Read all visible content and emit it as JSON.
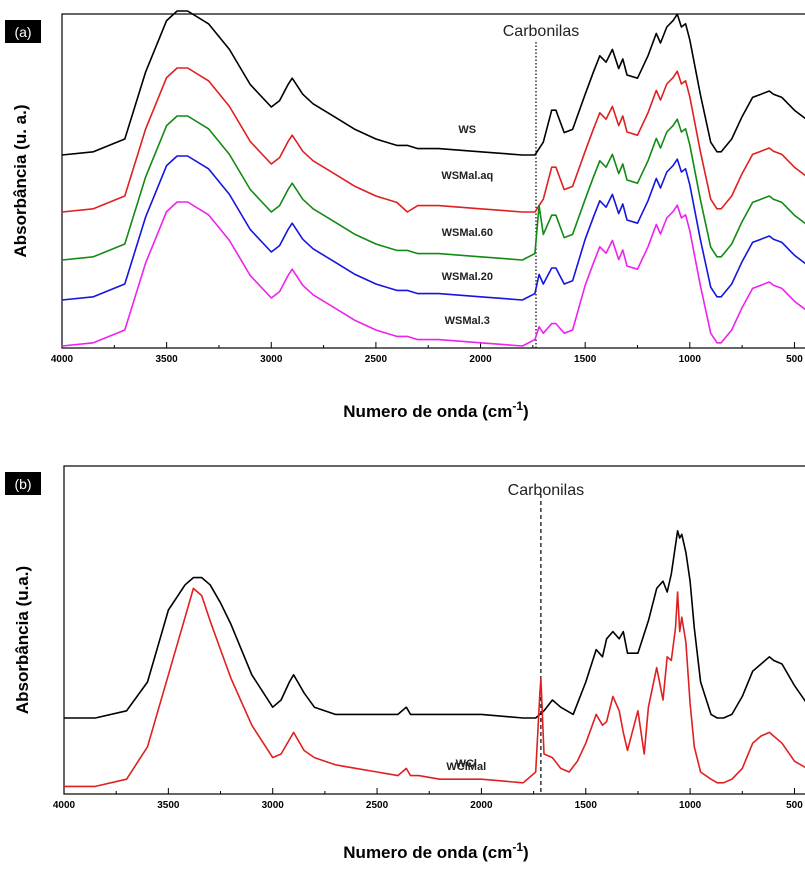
{
  "chart_data": [
    {
      "type": "line",
      "panel_label": "(a)",
      "xlabel": "Numero de onda (cm",
      "xlabel_sup": "-1",
      "xlabel_suffix": ")",
      "ylabel": "Absorbância (u. a.)",
      "xlim": [
        4000,
        440
      ],
      "x_reversed": true,
      "x_ticks": [
        4000,
        3500,
        3000,
        2500,
        2000,
        1500,
        1000,
        500
      ],
      "x_tick_labels": [
        "4000",
        "3500",
        "3000",
        "2500",
        "2000",
        "1500",
        "1000",
        "500"
      ],
      "y_ticks_shown": false,
      "grid": false,
      "annotation": {
        "text": "Carbonilas",
        "x": 1735,
        "line_style": "dotted"
      },
      "series": [
        {
          "name": "WS",
          "color": "#000000",
          "x": [
            4000,
            3850,
            3700,
            3600,
            3500,
            3450,
            3400,
            3300,
            3200,
            3100,
            3000,
            2960,
            2920,
            2900,
            2880,
            2850,
            2800,
            2700,
            2600,
            2500,
            2400,
            2350,
            2300,
            2200,
            2000,
            1800,
            1740,
            1700,
            1660,
            1640,
            1600,
            1560,
            1500,
            1460,
            1430,
            1400,
            1370,
            1340,
            1320,
            1300,
            1250,
            1200,
            1160,
            1140,
            1110,
            1080,
            1060,
            1040,
            1020,
            1000,
            950,
            900,
            870,
            850,
            800,
            750,
            700,
            660,
            620,
            600,
            560,
            500,
            440
          ],
          "y": [
            0.0,
            0.01,
            0.05,
            0.26,
            0.42,
            0.45,
            0.45,
            0.41,
            0.33,
            0.22,
            0.15,
            0.17,
            0.22,
            0.24,
            0.22,
            0.19,
            0.16,
            0.12,
            0.08,
            0.05,
            0.03,
            0.03,
            0.02,
            0.02,
            0.01,
            0.0,
            0.0,
            0.04,
            0.14,
            0.14,
            0.07,
            0.08,
            0.19,
            0.26,
            0.31,
            0.29,
            0.33,
            0.27,
            0.3,
            0.25,
            0.24,
            0.31,
            0.38,
            0.35,
            0.4,
            0.42,
            0.44,
            0.4,
            0.41,
            0.36,
            0.19,
            0.04,
            0.01,
            0.01,
            0.05,
            0.12,
            0.18,
            0.19,
            0.2,
            0.19,
            0.18,
            0.14,
            0.11
          ]
        },
        {
          "name": "WSMal.aq",
          "color": "#e02020",
          "x": [
            4000,
            3850,
            3700,
            3600,
            3500,
            3450,
            3400,
            3300,
            3200,
            3100,
            3000,
            2960,
            2920,
            2900,
            2880,
            2850,
            2800,
            2700,
            2600,
            2500,
            2400,
            2350,
            2300,
            2200,
            2000,
            1800,
            1740,
            1700,
            1660,
            1640,
            1600,
            1560,
            1500,
            1460,
            1430,
            1400,
            1370,
            1340,
            1320,
            1300,
            1250,
            1200,
            1160,
            1140,
            1110,
            1080,
            1060,
            1040,
            1020,
            1000,
            950,
            900,
            870,
            850,
            800,
            750,
            700,
            660,
            620,
            600,
            560,
            500,
            440
          ],
          "y": [
            0.0,
            0.01,
            0.05,
            0.26,
            0.42,
            0.45,
            0.45,
            0.41,
            0.33,
            0.22,
            0.15,
            0.17,
            0.22,
            0.24,
            0.22,
            0.19,
            0.16,
            0.12,
            0.08,
            0.05,
            0.03,
            0.0,
            0.02,
            0.02,
            0.01,
            0.0,
            0.0,
            0.04,
            0.14,
            0.14,
            0.07,
            0.08,
            0.19,
            0.26,
            0.31,
            0.29,
            0.33,
            0.27,
            0.3,
            0.25,
            0.24,
            0.31,
            0.38,
            0.35,
            0.4,
            0.42,
            0.44,
            0.4,
            0.41,
            0.36,
            0.19,
            0.04,
            0.01,
            0.01,
            0.05,
            0.12,
            0.18,
            0.19,
            0.2,
            0.19,
            0.18,
            0.14,
            0.11
          ]
        },
        {
          "name": "WSMal.60",
          "color": "#138a13",
          "x": [
            4000,
            3850,
            3700,
            3600,
            3500,
            3450,
            3400,
            3300,
            3200,
            3100,
            3000,
            2960,
            2920,
            2900,
            2880,
            2850,
            2800,
            2700,
            2600,
            2500,
            2400,
            2350,
            2300,
            2200,
            2000,
            1800,
            1740,
            1720,
            1700,
            1660,
            1640,
            1600,
            1560,
            1500,
            1460,
            1430,
            1400,
            1370,
            1340,
            1320,
            1300,
            1250,
            1200,
            1160,
            1140,
            1110,
            1080,
            1060,
            1040,
            1020,
            1000,
            950,
            900,
            870,
            850,
            800,
            750,
            700,
            660,
            620,
            600,
            560,
            500,
            440
          ],
          "y": [
            0.0,
            0.01,
            0.05,
            0.26,
            0.42,
            0.45,
            0.45,
            0.41,
            0.33,
            0.22,
            0.15,
            0.17,
            0.22,
            0.24,
            0.22,
            0.19,
            0.16,
            0.12,
            0.08,
            0.05,
            0.03,
            0.03,
            0.02,
            0.02,
            0.01,
            0.0,
            0.02,
            0.17,
            0.08,
            0.14,
            0.14,
            0.07,
            0.08,
            0.19,
            0.26,
            0.31,
            0.29,
            0.33,
            0.27,
            0.3,
            0.25,
            0.24,
            0.31,
            0.38,
            0.35,
            0.4,
            0.42,
            0.44,
            0.4,
            0.41,
            0.36,
            0.19,
            0.04,
            0.01,
            0.01,
            0.05,
            0.12,
            0.18,
            0.19,
            0.2,
            0.19,
            0.18,
            0.14,
            0.11
          ]
        },
        {
          "name": "WSMal.20",
          "color": "#1515e0",
          "x": [
            4000,
            3850,
            3700,
            3600,
            3500,
            3450,
            3400,
            3300,
            3200,
            3100,
            3000,
            2960,
            2920,
            2900,
            2880,
            2850,
            2800,
            2700,
            2600,
            2500,
            2400,
            2350,
            2300,
            2200,
            2000,
            1800,
            1740,
            1720,
            1700,
            1660,
            1640,
            1600,
            1560,
            1500,
            1460,
            1430,
            1400,
            1370,
            1340,
            1320,
            1300,
            1250,
            1200,
            1160,
            1140,
            1110,
            1080,
            1060,
            1040,
            1020,
            1000,
            950,
            900,
            870,
            850,
            800,
            750,
            700,
            660,
            620,
            600,
            560,
            500,
            440
          ],
          "y": [
            0.0,
            0.01,
            0.05,
            0.26,
            0.42,
            0.45,
            0.45,
            0.41,
            0.33,
            0.22,
            0.15,
            0.17,
            0.22,
            0.24,
            0.22,
            0.19,
            0.16,
            0.12,
            0.08,
            0.05,
            0.03,
            0.03,
            0.02,
            0.02,
            0.01,
            0.0,
            0.02,
            0.08,
            0.05,
            0.1,
            0.1,
            0.05,
            0.06,
            0.19,
            0.26,
            0.31,
            0.29,
            0.33,
            0.27,
            0.3,
            0.25,
            0.24,
            0.31,
            0.38,
            0.35,
            0.4,
            0.42,
            0.44,
            0.4,
            0.41,
            0.36,
            0.19,
            0.04,
            0.01,
            0.01,
            0.05,
            0.12,
            0.18,
            0.19,
            0.2,
            0.19,
            0.18,
            0.14,
            0.11
          ]
        },
        {
          "name": "WSMal.3",
          "color": "#ee22ee",
          "x": [
            4000,
            3850,
            3700,
            3600,
            3500,
            3450,
            3400,
            3300,
            3200,
            3100,
            3000,
            2960,
            2920,
            2900,
            2880,
            2850,
            2800,
            2700,
            2600,
            2500,
            2400,
            2350,
            2300,
            2200,
            2000,
            1800,
            1740,
            1720,
            1700,
            1660,
            1640,
            1600,
            1560,
            1500,
            1460,
            1430,
            1400,
            1370,
            1340,
            1320,
            1300,
            1250,
            1200,
            1160,
            1140,
            1110,
            1080,
            1060,
            1040,
            1020,
            1000,
            950,
            900,
            870,
            850,
            800,
            750,
            700,
            660,
            620,
            600,
            560,
            500,
            440
          ],
          "y": [
            0.0,
            0.01,
            0.05,
            0.26,
            0.42,
            0.45,
            0.45,
            0.41,
            0.33,
            0.22,
            0.15,
            0.17,
            0.22,
            0.24,
            0.22,
            0.19,
            0.16,
            0.12,
            0.08,
            0.05,
            0.03,
            0.03,
            0.02,
            0.02,
            0.01,
            0.0,
            0.02,
            0.06,
            0.04,
            0.07,
            0.07,
            0.04,
            0.05,
            0.19,
            0.26,
            0.31,
            0.29,
            0.33,
            0.27,
            0.3,
            0.25,
            0.24,
            0.31,
            0.38,
            0.35,
            0.4,
            0.42,
            0.44,
            0.4,
            0.41,
            0.36,
            0.19,
            0.04,
            0.01,
            0.01,
            0.05,
            0.12,
            0.18,
            0.19,
            0.2,
            0.19,
            0.18,
            0.14,
            0.11
          ]
        }
      ],
      "series_label_x": [
        2350,
        2350,
        2350,
        2350,
        2350
      ]
    },
    {
      "type": "line",
      "panel_label": "(b)",
      "xlabel": "Numero de onda (cm",
      "xlabel_sup": "-1",
      "xlabel_suffix": ")",
      "ylabel": "Absorbância (u.a.)",
      "xlim": [
        4000,
        440
      ],
      "x_reversed": true,
      "x_ticks": [
        4000,
        3500,
        3000,
        2500,
        2000,
        1500,
        1000,
        500
      ],
      "x_tick_labels": [
        "4000",
        "3500",
        "3000",
        "2500",
        "2000",
        "1500",
        "1000",
        "500"
      ],
      "y_ticks_shown": false,
      "grid": false,
      "annotation": {
        "text": "Carbonilas",
        "x": 1715,
        "line_style": "dashed"
      },
      "series": [
        {
          "name": "WCl",
          "color": "#000000",
          "x": [
            4000,
            3850,
            3700,
            3600,
            3500,
            3420,
            3380,
            3340,
            3300,
            3250,
            3200,
            3100,
            3000,
            2960,
            2920,
            2900,
            2880,
            2850,
            2800,
            2700,
            2600,
            2500,
            2400,
            2360,
            2340,
            2300,
            2200,
            2000,
            1800,
            1740,
            1700,
            1660,
            1620,
            1560,
            1500,
            1450,
            1420,
            1400,
            1370,
            1340,
            1320,
            1300,
            1250,
            1200,
            1160,
            1130,
            1110,
            1090,
            1070,
            1060,
            1050,
            1040,
            1020,
            1000,
            980,
            950,
            900,
            870,
            840,
            800,
            750,
            700,
            660,
            620,
            600,
            560,
            500,
            440
          ],
          "y": [
            0.2,
            0.2,
            0.22,
            0.3,
            0.5,
            0.57,
            0.59,
            0.59,
            0.57,
            0.52,
            0.46,
            0.32,
            0.23,
            0.25,
            0.3,
            0.32,
            0.3,
            0.27,
            0.23,
            0.21,
            0.21,
            0.21,
            0.21,
            0.23,
            0.21,
            0.21,
            0.21,
            0.21,
            0.2,
            0.2,
            0.22,
            0.25,
            0.23,
            0.21,
            0.3,
            0.39,
            0.37,
            0.42,
            0.44,
            0.42,
            0.44,
            0.38,
            0.38,
            0.47,
            0.56,
            0.58,
            0.55,
            0.6,
            0.68,
            0.72,
            0.7,
            0.71,
            0.66,
            0.58,
            0.45,
            0.3,
            0.21,
            0.2,
            0.2,
            0.21,
            0.26,
            0.33,
            0.35,
            0.37,
            0.36,
            0.35,
            0.29,
            0.24
          ]
        },
        {
          "name": "WClMal",
          "color": "#e02020",
          "x": [
            4000,
            3850,
            3700,
            3600,
            3500,
            3420,
            3380,
            3340,
            3300,
            3250,
            3200,
            3100,
            3000,
            2960,
            2920,
            2900,
            2880,
            2850,
            2800,
            2700,
            2600,
            2500,
            2400,
            2360,
            2340,
            2300,
            2200,
            2000,
            1800,
            1740,
            1720,
            1715,
            1700,
            1660,
            1620,
            1580,
            1540,
            1500,
            1450,
            1420,
            1400,
            1370,
            1340,
            1320,
            1300,
            1250,
            1220,
            1200,
            1160,
            1130,
            1110,
            1090,
            1070,
            1060,
            1050,
            1040,
            1020,
            1000,
            980,
            950,
            900,
            870,
            840,
            800,
            750,
            700,
            660,
            620,
            600,
            560,
            500,
            440
          ],
          "y": [
            0.01,
            0.01,
            0.03,
            0.12,
            0.32,
            0.48,
            0.56,
            0.54,
            0.47,
            0.39,
            0.31,
            0.18,
            0.09,
            0.1,
            0.14,
            0.16,
            0.14,
            0.11,
            0.09,
            0.07,
            0.06,
            0.05,
            0.04,
            0.06,
            0.04,
            0.04,
            0.03,
            0.03,
            0.02,
            0.05,
            0.27,
            0.31,
            0.1,
            0.09,
            0.06,
            0.05,
            0.08,
            0.13,
            0.21,
            0.18,
            0.19,
            0.26,
            0.22,
            0.16,
            0.11,
            0.22,
            0.1,
            0.23,
            0.34,
            0.25,
            0.37,
            0.36,
            0.45,
            0.55,
            0.44,
            0.48,
            0.41,
            0.24,
            0.12,
            0.05,
            0.03,
            0.02,
            0.02,
            0.03,
            0.06,
            0.13,
            0.15,
            0.16,
            0.15,
            0.13,
            0.08,
            0.06
          ]
        }
      ],
      "series_label_x": [
        2360,
        2360
      ]
    }
  ]
}
